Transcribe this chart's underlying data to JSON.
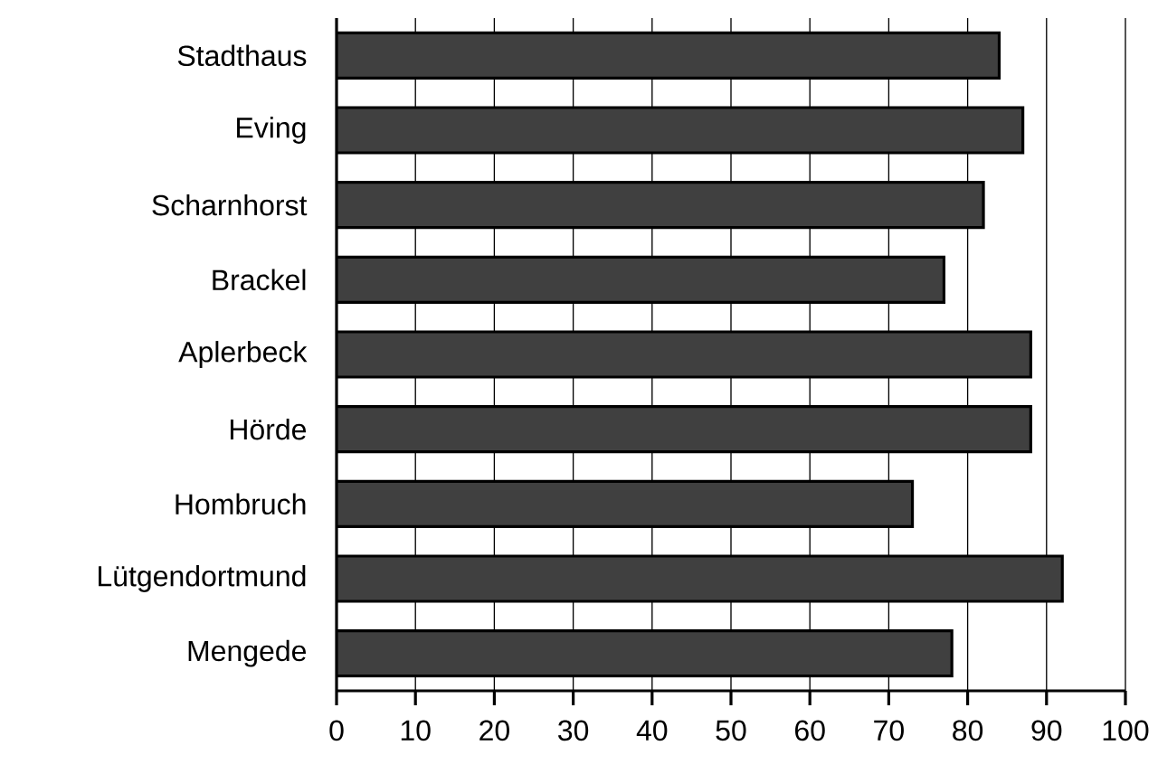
{
  "chart_data": {
    "type": "bar",
    "orientation": "horizontal",
    "categories": [
      "Stadthaus",
      "Eving",
      "Scharnhorst",
      "Brackel",
      "Aplerbeck",
      "Hörde",
      "Hombruch",
      "Lütgendortmund",
      "Mengede"
    ],
    "values": [
      84,
      87,
      82,
      77,
      88,
      88,
      73,
      92,
      78
    ],
    "color": "#404040",
    "xlim": [
      0,
      100
    ],
    "xticks": [
      0,
      10,
      20,
      30,
      40,
      50,
      60,
      70,
      80,
      90,
      100
    ],
    "grid": "x"
  }
}
